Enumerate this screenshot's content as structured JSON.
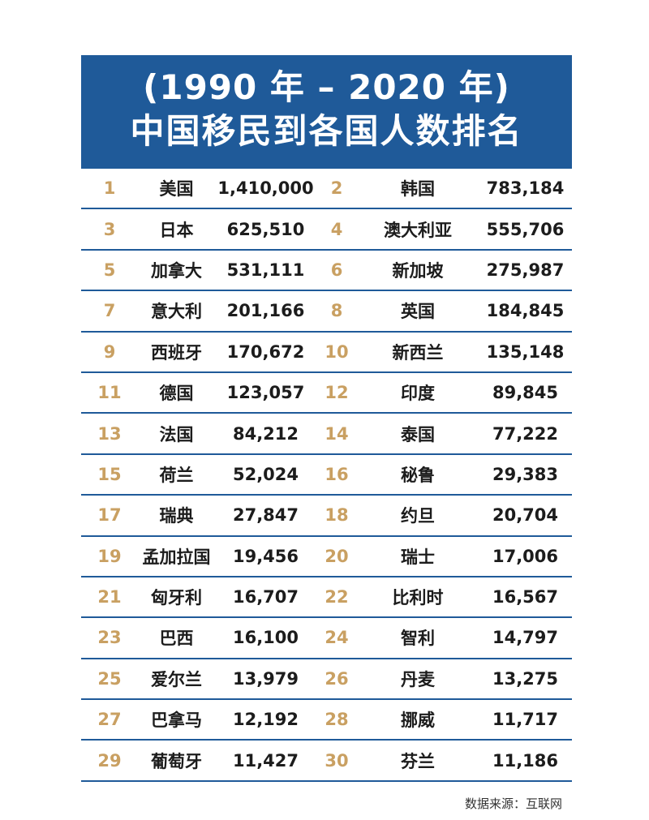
{
  "header": {
    "title_line1": "(1990 年 – 2020 年)",
    "title_line2": "中国移民到各国人数排名"
  },
  "rows": [
    {
      "left": {
        "rank": "1",
        "country": "美国",
        "count": "1,410,000"
      },
      "right": {
        "rank": "2",
        "country": "韩国",
        "count": "783,184"
      }
    },
    {
      "left": {
        "rank": "3",
        "country": "日本",
        "count": "625,510"
      },
      "right": {
        "rank": "4",
        "country": "澳大利亚",
        "count": "555,706"
      }
    },
    {
      "left": {
        "rank": "5",
        "country": "加拿大",
        "count": "531,111"
      },
      "right": {
        "rank": "6",
        "country": "新加坡",
        "count": "275,987"
      }
    },
    {
      "left": {
        "rank": "7",
        "country": "意大利",
        "count": "201,166"
      },
      "right": {
        "rank": "8",
        "country": "英国",
        "count": "184,845"
      }
    },
    {
      "left": {
        "rank": "9",
        "country": "西班牙",
        "count": "170,672"
      },
      "right": {
        "rank": "10",
        "country": "新西兰",
        "count": "135,148"
      }
    },
    {
      "left": {
        "rank": "11",
        "country": "德国",
        "count": "123,057"
      },
      "right": {
        "rank": "12",
        "country": "印度",
        "count": "89,845"
      }
    },
    {
      "left": {
        "rank": "13",
        "country": "法国",
        "count": "84,212"
      },
      "right": {
        "rank": "14",
        "country": "泰国",
        "count": "77,222"
      }
    },
    {
      "left": {
        "rank": "15",
        "country": "荷兰",
        "count": "52,024"
      },
      "right": {
        "rank": "16",
        "country": "秘鲁",
        "count": "29,383"
      }
    },
    {
      "left": {
        "rank": "17",
        "country": "瑞典",
        "count": "27,847"
      },
      "right": {
        "rank": "18",
        "country": "约旦",
        "count": "20,704"
      }
    },
    {
      "left": {
        "rank": "19",
        "country": "孟加拉国",
        "count": "19,456"
      },
      "right": {
        "rank": "20",
        "country": "瑞士",
        "count": "17,006"
      }
    },
    {
      "left": {
        "rank": "21",
        "country": "匈牙利",
        "count": "16,707"
      },
      "right": {
        "rank": "22",
        "country": "比利时",
        "count": "16,567"
      }
    },
    {
      "left": {
        "rank": "23",
        "country": "巴西",
        "count": "16,100"
      },
      "right": {
        "rank": "24",
        "country": "智利",
        "count": "14,797"
      }
    },
    {
      "left": {
        "rank": "25",
        "country": "爱尔兰",
        "count": "13,979"
      },
      "right": {
        "rank": "26",
        "country": "丹麦",
        "count": "13,275"
      }
    },
    {
      "left": {
        "rank": "27",
        "country": "巴拿马",
        "count": "12,192"
      },
      "right": {
        "rank": "28",
        "country": "挪威",
        "count": "11,717"
      }
    },
    {
      "left": {
        "rank": "29",
        "country": "葡萄牙",
        "count": "11,427"
      },
      "right": {
        "rank": "30",
        "country": "芬兰",
        "count": "11,186"
      }
    }
  ],
  "footer": {
    "source": "数据来源：互联网"
  },
  "colors": {
    "header_bg": "#1f5a99",
    "rank_color": "#c9a062",
    "divider": "#1f5a99"
  }
}
